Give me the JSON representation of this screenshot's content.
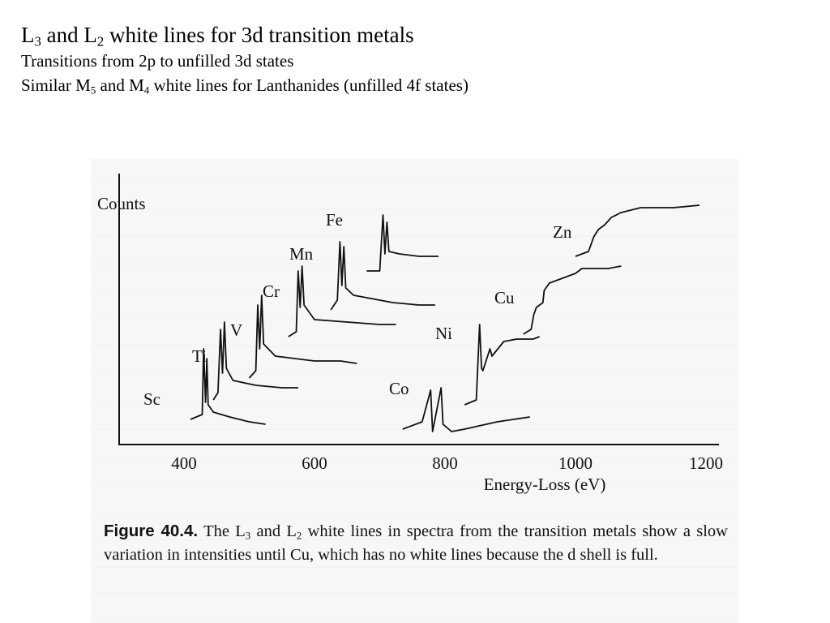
{
  "slide": {
    "title": {
      "main": "L",
      "sub1": "3",
      "mid": " and L",
      "sub2": "2",
      "rest": " white lines for 3d transition metals"
    },
    "line2": "Transitions from 2p to unfilled 3d states",
    "line3": {
      "pre": "Similar M",
      "sub1": "5",
      "mid": " and M",
      "sub2": "4",
      "rest": " white lines for Lanthanides (unfilled 4f states)"
    }
  },
  "figure": {
    "caption": {
      "label": "Figure 40.4.",
      "t1": " The L",
      "s1": "3",
      "t2": " and L",
      "s2": "2",
      "t3": " white lines in spectra from the transition metals show a slow variation in intensities until Cu, which has no white lines because the d shell is full."
    }
  },
  "chart_data": {
    "type": "line",
    "title": "",
    "xlabel": "Energy-Loss (eV)",
    "ylabel": "Counts",
    "xlim": [
      330,
      1200
    ],
    "x_ticks": [
      400,
      600,
      800,
      1000,
      1200
    ],
    "y_ticks": [],
    "grid": false,
    "legend": "none",
    "stacked_offsets": true,
    "series": [
      {
        "name": "Sc",
        "points": [
          [
            410,
            0.09
          ],
          [
            428,
            0.11
          ],
          [
            430,
            0.38
          ],
          [
            433,
            0.16
          ],
          [
            435,
            0.34
          ],
          [
            437,
            0.15
          ],
          [
            445,
            0.12
          ],
          [
            470,
            0.1
          ],
          [
            500,
            0.08
          ],
          [
            525,
            0.07
          ]
        ]
      },
      {
        "name": "Ti",
        "points": [
          [
            445,
            0.17
          ],
          [
            452,
            0.2
          ],
          [
            456,
            0.46
          ],
          [
            459,
            0.28
          ],
          [
            462,
            0.49
          ],
          [
            465,
            0.3
          ],
          [
            475,
            0.25
          ],
          [
            510,
            0.23
          ],
          [
            550,
            0.22
          ],
          [
            575,
            0.22
          ]
        ]
      },
      {
        "name": "V",
        "points": [
          [
            500,
            0.26
          ],
          [
            510,
            0.29
          ],
          [
            513,
            0.56
          ],
          [
            516,
            0.38
          ],
          [
            519,
            0.6
          ],
          [
            522,
            0.4
          ],
          [
            540,
            0.35
          ],
          [
            600,
            0.33
          ],
          [
            640,
            0.33
          ],
          [
            665,
            0.32
          ]
        ]
      },
      {
        "name": "Cr",
        "points": [
          [
            560,
            0.43
          ],
          [
            572,
            0.45
          ],
          [
            575,
            0.7
          ],
          [
            578,
            0.55
          ],
          [
            581,
            0.72
          ],
          [
            584,
            0.56
          ],
          [
            600,
            0.5
          ],
          [
            650,
            0.49
          ],
          [
            700,
            0.48
          ],
          [
            725,
            0.48
          ]
        ]
      },
      {
        "name": "Mn",
        "points": [
          [
            625,
            0.54
          ],
          [
            635,
            0.58
          ],
          [
            639,
            0.82
          ],
          [
            642,
            0.64
          ],
          [
            645,
            0.8
          ],
          [
            648,
            0.63
          ],
          [
            660,
            0.6
          ],
          [
            720,
            0.57
          ],
          [
            760,
            0.56
          ],
          [
            785,
            0.56
          ]
        ]
      },
      {
        "name": "Fe",
        "points": [
          [
            680,
            0.7
          ],
          [
            700,
            0.7
          ],
          [
            705,
            0.93
          ],
          [
            708,
            0.77
          ],
          [
            711,
            0.9
          ],
          [
            714,
            0.78
          ],
          [
            730,
            0.77
          ],
          [
            760,
            0.76
          ],
          [
            790,
            0.76
          ]
        ]
      },
      {
        "name": "Co",
        "points": [
          [
            735,
            0.05
          ],
          [
            765,
            0.08
          ],
          [
            778,
            0.21
          ],
          [
            781,
            0.04
          ],
          [
            794,
            0.22
          ],
          [
            797,
            0.07
          ],
          [
            810,
            0.04
          ],
          [
            830,
            0.05
          ],
          [
            880,
            0.08
          ],
          [
            930,
            0.1
          ]
        ]
      },
      {
        "name": "Ni",
        "points": [
          [
            830,
            0.15
          ],
          [
            848,
            0.17
          ],
          [
            853,
            0.48
          ],
          [
            856,
            0.3
          ],
          [
            858,
            0.29
          ],
          [
            869,
            0.38
          ],
          [
            872,
            0.35
          ],
          [
            890,
            0.41
          ],
          [
            910,
            0.42
          ],
          [
            935,
            0.42
          ],
          [
            945,
            0.43
          ]
        ]
      },
      {
        "name": "Cu",
        "points": [
          [
            920,
            0.44
          ],
          [
            932,
            0.46
          ],
          [
            936,
            0.52
          ],
          [
            940,
            0.55
          ],
          [
            950,
            0.57
          ],
          [
            952,
            0.62
          ],
          [
            960,
            0.65
          ],
          [
            980,
            0.67
          ],
          [
            1000,
            0.69
          ],
          [
            1010,
            0.71
          ],
          [
            1050,
            0.71
          ],
          [
            1070,
            0.72
          ]
        ]
      },
      {
        "name": "Zn",
        "points": [
          [
            1000,
            0.76
          ],
          [
            1020,
            0.78
          ],
          [
            1028,
            0.84
          ],
          [
            1035,
            0.87
          ],
          [
            1045,
            0.89
          ],
          [
            1055,
            0.92
          ],
          [
            1070,
            0.94
          ],
          [
            1100,
            0.96
          ],
          [
            1150,
            0.96
          ],
          [
            1190,
            0.97
          ]
        ]
      }
    ],
    "element_labels": [
      "Sc",
      "Ti",
      "V",
      "Cr",
      "Mn",
      "Fe",
      "Co",
      "Ni",
      "Cu",
      "Zn"
    ]
  }
}
